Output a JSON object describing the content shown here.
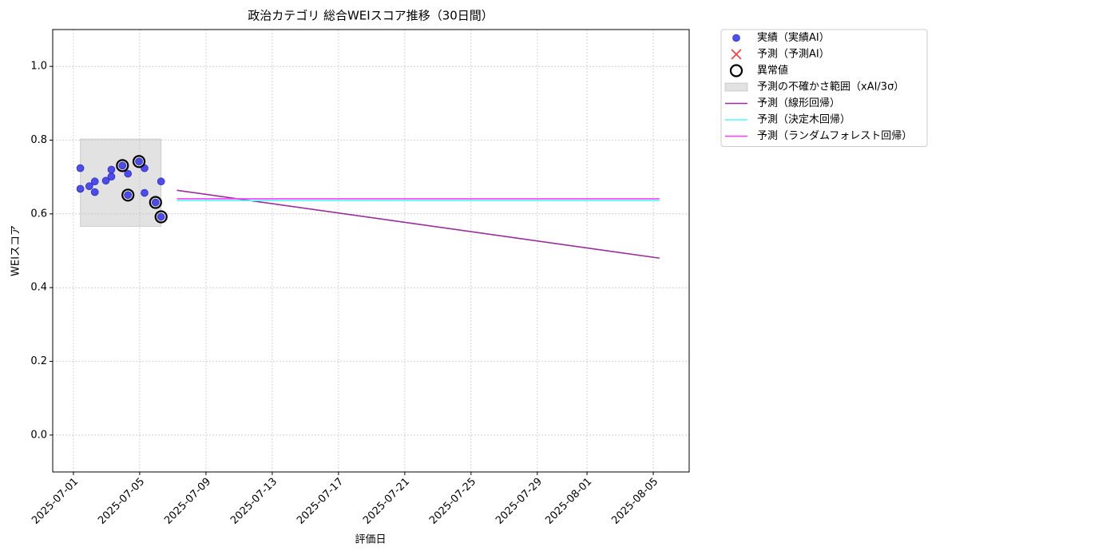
{
  "chart_data": {
    "type": "line",
    "title": "政治カテゴリ 総合WEIスコア推移（30日間）",
    "xlabel": "評価日",
    "ylabel": "WEIスコア",
    "xlim": [
      "2025-06-29 18:00",
      "2025-08-07 04:00"
    ],
    "xticks": [
      "2025-07-01",
      "2025-07-05",
      "2025-07-09",
      "2025-07-13",
      "2025-07-17",
      "2025-07-21",
      "2025-07-25",
      "2025-07-29",
      "2025-08-01",
      "2025-08-05"
    ],
    "ylim": [
      -0.1,
      1.1
    ],
    "yticks": [
      {
        "value": 0,
        "label": "0.0"
      },
      0.2,
      0.4,
      0.6,
      0.8,
      {
        "value": 1,
        "label": "1.0"
      }
    ],
    "grid": true,
    "legend": "outside upper right",
    "series": [
      {
        "name": "実績（実績AI）",
        "type": "scatter",
        "marker": "o",
        "color": "#3b3bf0",
        "x": [
          "2025-07-01 10:00",
          "2025-07-01 10:00",
          "2025-07-01 23:00",
          "2025-07-02 07:00",
          "2025-07-02 07:00",
          "2025-07-02 23:00",
          "2025-07-03 07:00",
          "2025-07-03 07:00",
          "2025-07-03 23:00",
          "2025-07-04 07:00",
          "2025-07-04 07:00",
          "2025-07-04 23:00",
          "2025-07-05 07:00",
          "2025-07-05 07:00",
          "2025-07-05 23:00",
          "2025-07-06 07:00",
          "2025-07-06 07:00"
        ],
        "values": [
          0.724,
          0.668,
          0.675,
          0.688,
          0.659,
          0.69,
          0.72,
          0.701,
          0.731,
          0.709,
          0.651,
          0.742,
          0.724,
          0.657,
          0.631,
          0.688,
          0.592
        ]
      },
      {
        "name": "予測（予測AI）",
        "type": "scatter",
        "marker": "x",
        "color": "#ff3b3b",
        "x": [],
        "values": []
      },
      {
        "name": "異常値",
        "type": "scatter",
        "marker": "ring",
        "color": "#000000",
        "x": [
          "2025-07-03 23:00",
          "2025-07-04 07:00",
          "2025-07-04 23:00",
          "2025-07-05 23:00",
          "2025-07-06 07:00"
        ],
        "values": [
          0.731,
          0.651,
          0.742,
          0.631,
          0.592
        ]
      },
      {
        "name": "予測の不確かさ範囲（xAI/3σ）",
        "type": "band",
        "color": "#bfbfbf",
        "x": [
          "2025-07-01 10:00",
          "2025-07-06 07:00"
        ],
        "low": [
          0.566,
          0.566
        ],
        "high": [
          0.803,
          0.803
        ]
      },
      {
        "name": "予測（線形回帰）",
        "type": "line",
        "color": "#9a2d9a",
        "x": [
          "2025-07-07 06:00",
          "2025-08-05 09:00"
        ],
        "values": [
          0.664,
          0.48
        ]
      },
      {
        "name": "予測（決定木回帰）",
        "type": "line",
        "color": "#4dffff",
        "x": [
          "2025-07-07 06:00",
          "2025-08-05 09:00"
        ],
        "values": [
          0.636,
          0.636
        ]
      },
      {
        "name": "予測（ランダムフォレスト回帰）",
        "type": "line",
        "color": "#ff3bff",
        "x": [
          "2025-07-07 06:00",
          "2025-08-05 09:00"
        ],
        "values": [
          0.641,
          0.641
        ]
      }
    ]
  }
}
